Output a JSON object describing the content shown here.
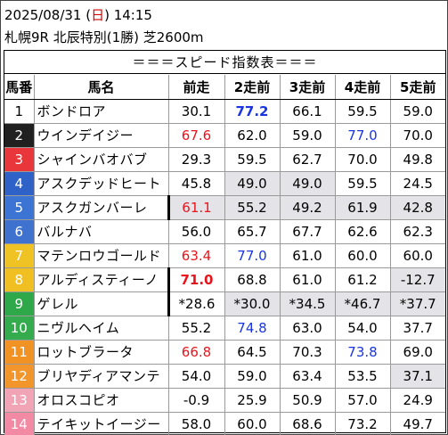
{
  "header": {
    "date_prefix": "2025/08/31 (",
    "weekday": "日",
    "date_suffix": ") 14:15",
    "race_line": "札幌9R 北辰特別(1勝) 芝2600m"
  },
  "table": {
    "title": "＝＝＝スピード指数表＝＝＝",
    "columns": [
      "馬番",
      "馬名",
      "前走",
      "2走前",
      "3走前",
      "4走前",
      "5走前"
    ],
    "rows": [
      {
        "no": "1",
        "name": "ボンドロア",
        "vals": [
          "30.1",
          "77.2",
          "66.1",
          "59.5",
          "59.0"
        ]
      },
      {
        "no": "2",
        "name": "ウインデイジー",
        "vals": [
          "67.6",
          "62.0",
          "59.0",
          "77.0",
          "70.0"
        ]
      },
      {
        "no": "3",
        "name": "シャインバオバブ",
        "vals": [
          "29.3",
          "59.5",
          "62.7",
          "70.0",
          "49.8"
        ]
      },
      {
        "no": "4",
        "name": "アスクデッドヒート",
        "vals": [
          "45.8",
          "49.0",
          "49.0",
          "59.5",
          "24.5"
        ]
      },
      {
        "no": "5",
        "name": "アスクガンバーレ",
        "vals": [
          "61.1",
          "55.2",
          "49.2",
          "61.9",
          "42.8"
        ]
      },
      {
        "no": "6",
        "name": "バルナバ",
        "vals": [
          "56.0",
          "65.7",
          "67.7",
          "62.6",
          "62.3"
        ]
      },
      {
        "no": "7",
        "name": "マテンロウゴールド",
        "vals": [
          "63.4",
          "77.0",
          "61.0",
          "60.0",
          "60.0"
        ]
      },
      {
        "no": "8",
        "name": "アルディスティーノ",
        "vals": [
          "71.0",
          "68.8",
          "61.0",
          "61.2",
          "-12.7"
        ]
      },
      {
        "no": "9",
        "name": "ゲレル",
        "vals": [
          "*28.6",
          "*30.0",
          "*34.5",
          "*46.7",
          "*37.7"
        ]
      },
      {
        "no": "10",
        "name": "ニヴルヘイム",
        "vals": [
          "55.2",
          "74.8",
          "63.0",
          "54.0",
          "37.7"
        ]
      },
      {
        "no": "11",
        "name": "ロットブラータ",
        "vals": [
          "66.8",
          "64.5",
          "70.3",
          "73.8",
          "69.0"
        ]
      },
      {
        "no": "12",
        "name": "ブリヤディアマンテ",
        "vals": [
          "54.0",
          "59.0",
          "63.4",
          "53.5",
          "37.1"
        ]
      },
      {
        "no": "13",
        "name": "オロスコピオ",
        "vals": [
          "-0.9",
          "25.9",
          "50.9",
          "57.0",
          "24.9"
        ]
      },
      {
        "no": "14",
        "name": "テイキットイージー",
        "vals": [
          "58.0",
          "60.0",
          "68.6",
          "73.2",
          "49.7"
        ]
      }
    ]
  },
  "colors": {
    "red_value": "#e8141c",
    "blue_value": "#1a35e0",
    "gray_cell": "#e3e3e8"
  }
}
